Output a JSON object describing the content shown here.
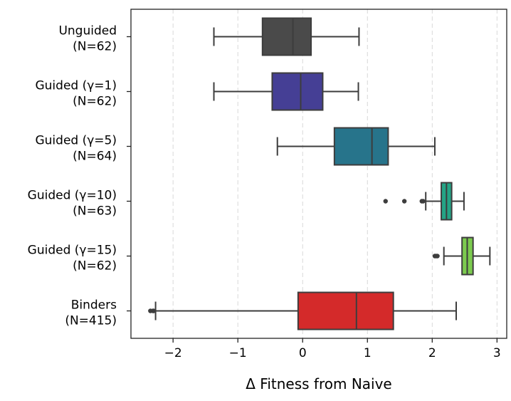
{
  "chart_data": {
    "type": "boxplot",
    "orientation": "horizontal",
    "title": "",
    "xlabel": "Δ Fitness from Naive",
    "ylabel": "",
    "xlim": [
      -2.65,
      3.15
    ],
    "xticks": [
      -2,
      -1,
      0,
      1,
      2,
      3
    ],
    "xtick_labels": [
      "−2",
      "−1",
      "0",
      "1",
      "2",
      "3"
    ],
    "grid": "vertical dashed",
    "categories": [
      {
        "line1": "Unguided",
        "line2": "(N=62)",
        "n": 62,
        "color": "#4a4a4a",
        "whisker_low": -1.37,
        "q1": -0.62,
        "median": -0.15,
        "q3": 0.13,
        "whisker_high": 0.87,
        "outliers": []
      },
      {
        "line1": "Guided (γ=1)",
        "line2": "(N=62)",
        "n": 62,
        "color": "#453f95",
        "whisker_low": -1.37,
        "q1": -0.47,
        "median": -0.03,
        "q3": 0.31,
        "whisker_high": 0.86,
        "outliers": []
      },
      {
        "line1": "Guided (γ=5)",
        "line2": "(N=64)",
        "n": 64,
        "color": "#27748b",
        "whisker_low": -0.39,
        "q1": 0.49,
        "median": 1.07,
        "q3": 1.32,
        "whisker_high": 2.04,
        "outliers": []
      },
      {
        "line1": "Guided (γ=10)",
        "line2": "(N=63)",
        "n": 63,
        "color": "#24a486",
        "whisker_low": 1.9,
        "q1": 2.14,
        "median": 2.22,
        "q3": 2.3,
        "whisker_high": 2.49,
        "outliers": [
          1.28,
          1.57,
          1.84,
          1.86
        ]
      },
      {
        "line1": "Guided (γ=15)",
        "line2": "(N=62)",
        "n": 62,
        "color": "#7ccb4f",
        "whisker_low": 2.18,
        "q1": 2.46,
        "median": 2.54,
        "q3": 2.63,
        "whisker_high": 2.89,
        "outliers": [
          2.04,
          2.06,
          2.08
        ]
      },
      {
        "line1": "Binders",
        "line2": "(N=415)",
        "n": 415,
        "color": "#d42a2a",
        "whisker_low": -2.27,
        "q1": -0.07,
        "median": 0.83,
        "q3": 1.4,
        "whisker_high": 2.37,
        "outliers": [
          -2.35,
          -2.31,
          -2.3
        ]
      }
    ]
  }
}
